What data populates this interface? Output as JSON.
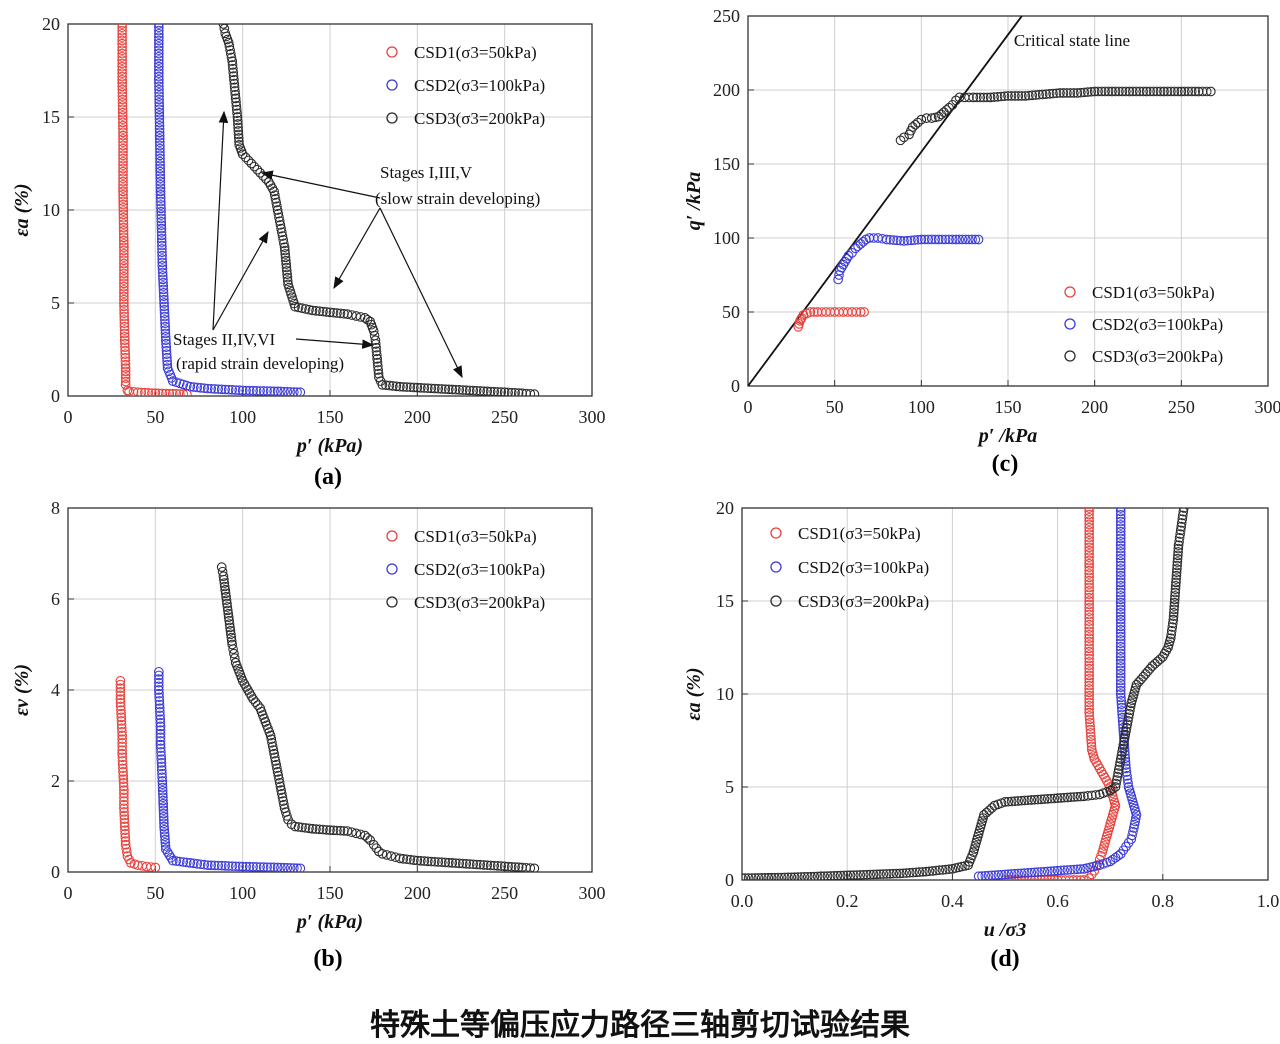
{
  "caption": "特殊土等偏压应力路径三轴剪切试验结果",
  "colors": {
    "CSD1": "#e8413c",
    "CSD2": "#3a3ad8",
    "CSD3": "#2a2a2a"
  },
  "legend_labels": [
    "CSD1(σ3=50kPa)",
    "CSD2(σ3=100kPa)",
    "CSD3(σ3=200kPa)"
  ],
  "chart_data": [
    {
      "id": "a",
      "type": "scatter",
      "panel_label": "(a)",
      "xlabel": "p′ (kPa)",
      "ylabel": "εa (%)",
      "xlim": [
        0,
        300
      ],
      "ylim": [
        0,
        20
      ],
      "xticks": [
        0,
        50,
        100,
        150,
        200,
        250,
        300
      ],
      "yticks": [
        0,
        5,
        10,
        15,
        20
      ],
      "grid": true,
      "legend": "top-right",
      "annotations": [
        {
          "text": "Stages I,III,V",
          "line": 1
        },
        {
          "text": "(slow strain developing)",
          "line": 2
        },
        {
          "text": "Stages II,IV,VI",
          "line": 3
        },
        {
          "text": "(rapid strain developing)",
          "line": 4
        }
      ],
      "series": [
        {
          "name": "CSD1(σ3=50kPa)",
          "x": [
            31,
            31,
            31.5,
            31.5,
            32,
            32,
            32.5,
            33,
            33,
            34,
            35,
            40,
            50,
            60,
            68
          ],
          "y": [
            20,
            17,
            14,
            11,
            8,
            5,
            3,
            1.5,
            0.6,
            0.3,
            0.25,
            0.2,
            0.15,
            0.12,
            0.1
          ]
        },
        {
          "name": "CSD2(σ3=100kPa)",
          "x": [
            52,
            52,
            52.5,
            53,
            53.5,
            54,
            55,
            56,
            57,
            60,
            70,
            80,
            100,
            120,
            133
          ],
          "y": [
            20,
            17,
            14,
            11,
            9,
            7,
            5,
            3,
            1.5,
            0.8,
            0.5,
            0.4,
            0.3,
            0.25,
            0.2
          ]
        },
        {
          "name": "CSD3(σ3=200kPa)",
          "x": [
            89,
            90,
            92,
            94,
            95,
            96,
            97,
            98,
            100,
            105,
            110,
            115,
            118,
            120,
            122,
            124,
            126,
            130,
            140,
            150,
            160,
            165,
            170,
            173,
            175,
            176,
            177,
            178,
            180,
            190,
            200,
            210,
            220,
            230,
            240,
            250,
            260,
            267
          ],
          "y": [
            20,
            19.5,
            19,
            18,
            17,
            16,
            15,
            13.5,
            13,
            12.5,
            12,
            11.5,
            11,
            10,
            9,
            8,
            6,
            4.8,
            4.6,
            4.5,
            4.4,
            4.3,
            4.2,
            4,
            3.5,
            3,
            2,
            1,
            0.6,
            0.5,
            0.45,
            0.4,
            0.35,
            0.3,
            0.25,
            0.2,
            0.15,
            0.1
          ]
        }
      ]
    },
    {
      "id": "b",
      "type": "scatter",
      "panel_label": "(b)",
      "xlabel": "p′ (kPa)",
      "ylabel": "εv (%)",
      "xlim": [
        0,
        300
      ],
      "ylim": [
        0,
        8
      ],
      "xticks": [
        0,
        50,
        100,
        150,
        200,
        250,
        300
      ],
      "yticks": [
        0,
        2,
        4,
        6,
        8
      ],
      "grid": true,
      "legend": "top-right",
      "series": [
        {
          "name": "CSD1(σ3=50kPa)",
          "x": [
            30,
            30,
            30.5,
            31,
            31,
            31.5,
            32,
            32,
            32.5,
            33,
            34,
            36,
            40,
            45,
            50
          ],
          "y": [
            4.2,
            3.8,
            3.4,
            3,
            2.6,
            2.2,
            1.8,
            1.4,
            1,
            0.6,
            0.35,
            0.2,
            0.15,
            0.12,
            0.1
          ]
        },
        {
          "name": "CSD2(σ3=100kPa)",
          "x": [
            52,
            52,
            52.5,
            53,
            53,
            53.5,
            54,
            54.5,
            55,
            56,
            60,
            70,
            80,
            100,
            120,
            133
          ],
          "y": [
            4.4,
            4,
            3.6,
            3.2,
            2.8,
            2.4,
            2,
            1.5,
            1,
            0.5,
            0.25,
            0.2,
            0.15,
            0.12,
            0.1,
            0.08
          ]
        },
        {
          "name": "CSD3(σ3=200kPa)",
          "x": [
            88,
            89,
            90,
            91,
            92,
            93,
            94,
            95,
            96,
            98,
            100,
            103,
            106,
            110,
            113,
            116,
            118,
            120,
            122,
            124,
            126,
            128,
            130,
            140,
            150,
            160,
            165,
            170,
            173,
            175,
            178,
            180,
            185,
            190,
            200,
            220,
            240,
            260,
            267
          ],
          "y": [
            6.7,
            6.5,
            6.2,
            5.9,
            5.6,
            5.3,
            5,
            4.8,
            4.6,
            4.4,
            4.2,
            4,
            3.8,
            3.6,
            3.3,
            3,
            2.6,
            2.2,
            1.8,
            1.4,
            1.15,
            1.05,
            1,
            0.95,
            0.92,
            0.9,
            0.85,
            0.8,
            0.7,
            0.6,
            0.45,
            0.4,
            0.35,
            0.3,
            0.25,
            0.2,
            0.15,
            0.1,
            0.08
          ]
        }
      ]
    },
    {
      "id": "c",
      "type": "scatter",
      "panel_label": "(c)",
      "xlabel": "p′ /kPa",
      "ylabel": "q′ /kPa",
      "xlim": [
        0,
        300
      ],
      "ylim": [
        0,
        250
      ],
      "xticks": [
        0,
        50,
        100,
        150,
        200,
        250,
        300
      ],
      "yticks": [
        0,
        50,
        100,
        150,
        200,
        250
      ],
      "grid": true,
      "legend": "bottom-right",
      "reference_line": {
        "label": "Critical state line",
        "x": [
          0,
          158
        ],
        "y": [
          0,
          250
        ]
      },
      "series": [
        {
          "name": "CSD1(σ3=50kPa)",
          "x": [
            29,
            29.5,
            30,
            30.5,
            31,
            32,
            34,
            36,
            40,
            45,
            50,
            55,
            60,
            65,
            67
          ],
          "y": [
            40,
            42,
            44,
            45,
            46,
            48,
            49,
            50,
            50,
            50,
            50,
            50,
            50,
            50,
            50
          ]
        },
        {
          "name": "CSD2(σ3=100kPa)",
          "x": [
            52,
            52.5,
            53,
            54,
            55,
            56,
            57,
            58,
            60,
            62,
            65,
            68,
            70,
            75,
            80,
            90,
            100,
            110,
            120,
            133
          ],
          "y": [
            72,
            75,
            78,
            80,
            82,
            84,
            86,
            88,
            90,
            93,
            96,
            99,
            100,
            100,
            99,
            98,
            99,
            99,
            99,
            99
          ]
        },
        {
          "name": "CSD3(σ3=200kPa)",
          "x": [
            88,
            90,
            93,
            95,
            98,
            100,
            103,
            106,
            110,
            113,
            116,
            118,
            120,
            122,
            125,
            130,
            140,
            150,
            160,
            170,
            180,
            190,
            200,
            210,
            220,
            230,
            240,
            250,
            260,
            267
          ],
          "y": [
            166,
            168,
            170,
            175,
            178,
            180,
            181,
            181,
            182,
            185,
            188,
            190,
            193,
            195,
            195,
            195,
            195,
            196,
            196,
            197,
            198,
            198,
            199,
            199,
            199,
            199,
            199,
            199,
            199,
            199
          ]
        }
      ]
    },
    {
      "id": "d",
      "type": "scatter",
      "panel_label": "(d)",
      "xlabel": "u /σ3",
      "ylabel": "εa (%)",
      "xlim": [
        0,
        1
      ],
      "ylim": [
        0,
        20
      ],
      "xticks": [
        "0.0",
        "0.2",
        "0.4",
        "0.6",
        "0.8",
        "1.0"
      ],
      "yticks": [
        0,
        5,
        10,
        15,
        20
      ],
      "grid": true,
      "legend": "top-left",
      "series": [
        {
          "name": "CSD1(σ3=50kPa)",
          "x": [
            0.5,
            0.55,
            0.6,
            0.63,
            0.65,
            0.66,
            0.665,
            0.67,
            0.675,
            0.68,
            0.685,
            0.69,
            0.695,
            0.7,
            0.705,
            0.71,
            0.7,
            0.68,
            0.67,
            0.665,
            0.66,
            0.66,
            0.66,
            0.66,
            0.66,
            0.66
          ],
          "y": [
            0,
            0,
            0,
            0,
            0,
            0.1,
            0.3,
            0.5,
            0.8,
            1.1,
            1.5,
            2,
            2.5,
            3,
            3.5,
            4,
            5,
            6,
            6.5,
            7,
            9,
            11,
            13,
            15,
            17,
            20
          ]
        },
        {
          "name": "CSD2(σ3=100kPa)",
          "x": [
            0.45,
            0.5,
            0.55,
            0.6,
            0.65,
            0.68,
            0.7,
            0.72,
            0.73,
            0.74,
            0.745,
            0.75,
            0.745,
            0.74,
            0.735,
            0.73,
            0.725,
            0.72,
            0.72,
            0.72,
            0.72,
            0.72,
            0.72
          ],
          "y": [
            0.2,
            0.3,
            0.4,
            0.5,
            0.6,
            0.8,
            1,
            1.4,
            1.8,
            2.2,
            2.8,
            3.5,
            4,
            4.5,
            5,
            6,
            8,
            10,
            12,
            14,
            16,
            18,
            20
          ]
        },
        {
          "name": "CSD3(σ3=200kPa)",
          "x": [
            0,
            0.05,
            0.1,
            0.15,
            0.2,
            0.25,
            0.3,
            0.35,
            0.4,
            0.43,
            0.44,
            0.45,
            0.46,
            0.48,
            0.5,
            0.55,
            0.6,
            0.65,
            0.68,
            0.7,
            0.71,
            0.72,
            0.73,
            0.74,
            0.75,
            0.78,
            0.8,
            0.81,
            0.815,
            0.82,
            0.825,
            0.83,
            0.835,
            0.84
          ],
          "y": [
            0.1,
            0.12,
            0.15,
            0.2,
            0.25,
            0.3,
            0.35,
            0.45,
            0.6,
            0.8,
            1.5,
            2.5,
            3.5,
            4,
            4.2,
            4.3,
            4.4,
            4.5,
            4.6,
            4.8,
            5,
            6.5,
            8,
            9.5,
            10.5,
            11.5,
            12,
            12.5,
            13,
            14,
            16,
            18,
            19,
            20
          ]
        }
      ]
    }
  ]
}
